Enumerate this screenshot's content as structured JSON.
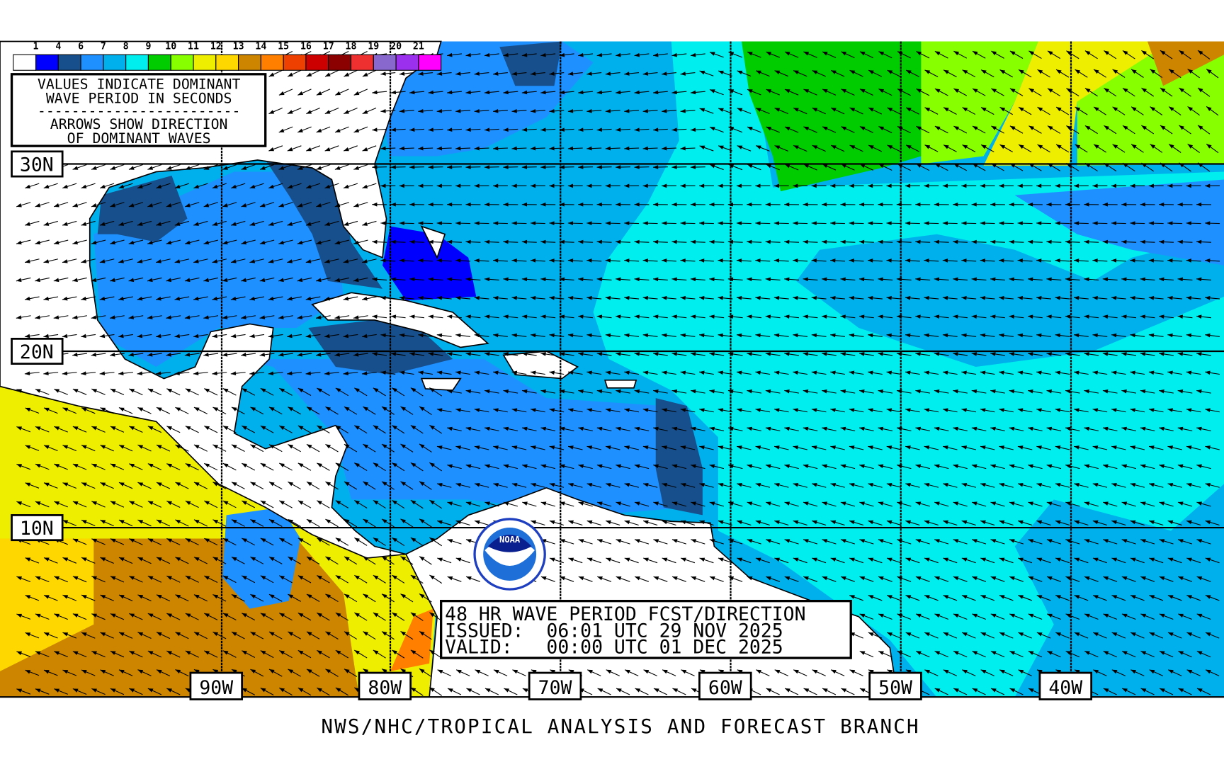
{
  "legend": {
    "tick_labels": [
      "1",
      "4",
      "6",
      "7",
      "8",
      "9",
      "10",
      "11",
      "12",
      "13",
      "14",
      "15",
      "16",
      "17",
      "18",
      "19",
      "20",
      "21"
    ],
    "colors": [
      "#ffffff",
      "#0000ff",
      "#174f8c",
      "#1e90ff",
      "#00b0ec",
      "#00eeee",
      "#00cc00",
      "#88ff00",
      "#eeee00",
      "#ffd700",
      "#cd8500",
      "#ff7f00",
      "#ee4000",
      "#cd0000",
      "#8b0000",
      "#ee3030",
      "#8968cd",
      "#9b30ee",
      "#ff00ff"
    ],
    "note_line1": "VALUES INDICATE DOMINANT",
    "note_line2": "WAVE PERIOD IN SECONDS",
    "note_sep": "------------------------",
    "note_line3": "ARROWS SHOW DIRECTION",
    "note_line4": "OF DOMINANT WAVES"
  },
  "latitudes": [
    "30N",
    "20N",
    "10N"
  ],
  "longitudes": [
    "90W",
    "80W",
    "70W",
    "60W",
    "50W",
    "40W"
  ],
  "title_box": {
    "line1": "48 HR WAVE PERIOD FCST/DIRECTION",
    "line2": "ISSUED:  06:01 UTC 29 NOV 2025",
    "line3": "VALID:   00:00 UTC 01 DEC 2025"
  },
  "logo": {
    "text": "NOAA"
  },
  "footer": "NWS/NHC/TROPICAL ANALYSIS AND FORECAST BRANCH"
}
